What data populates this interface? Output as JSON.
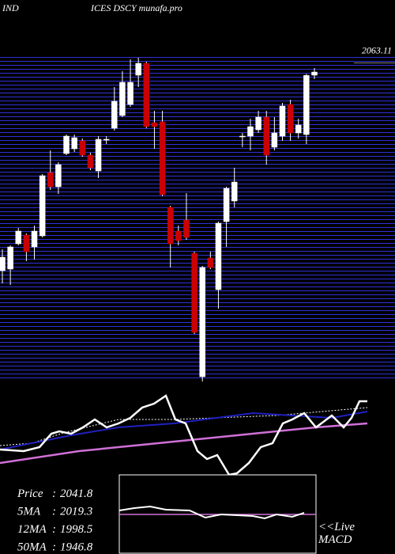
{
  "chart_data": {
    "type": "candlestick",
    "title_left": "IND",
    "title": "ICES DSCY munafa.pro",
    "ylim": [
      1701,
      2070
    ],
    "yticks": [
      2063.11
    ],
    "up_color": "#ffffff",
    "down_color": "#cc0000",
    "open": [
      1827.0,
      1828.8,
      1857.6,
      1867.5,
      1854.0,
      1866.6,
      1938.6,
      1922.4,
      1960.2,
      1965.6,
      1974.6,
      1958.4,
      1940.4,
      1975.5,
      1989.0,
      2003.4,
      2016.0,
      2049.3,
      2062.8,
      1995.3,
      1996.2,
      1899.0,
      1872.0,
      1884.6,
      1846.8,
      1706.4,
      1841.4,
      1805.4,
      1882.8,
      1906.2,
      1979.1,
      1980.0,
      1987.2,
      2001.6,
      1967.4,
      1980.0,
      2016.0,
      1983.6,
      1981.8,
      2049.3
    ],
    "high": [
      1851.3,
      1855.8,
      1875.6,
      1869.3,
      1878.3,
      1936.8,
      1963.8,
      1950.3,
      1981.8,
      1981.8,
      1977.3,
      1961.1,
      1980.0,
      1980.0,
      2035.8,
      2053.8,
      2067.3,
      2069.1,
      2064.6,
      2008.8,
      2008.8,
      1900.8,
      1878.3,
      1915.2,
      1848.6,
      1832.4,
      1848.6,
      1882.8,
      1922.4,
      1944.0,
      1983.6,
      1999.8,
      2008.8,
      2008.8,
      2001.6,
      2017.8,
      2021.4,
      1999.8,
      2050.8,
      2057.4
    ],
    "low": [
      1812.6,
      1810.8,
      1855.8,
      1837.8,
      1839.6,
      1864.8,
      1918.8,
      1914.3,
      1958.4,
      1962.0,
      1956.6,
      1941.3,
      1932.3,
      1971.0,
      1986.3,
      2001.6,
      2013.3,
      2035.8,
      1989.0,
      1965.6,
      1911.6,
      1830.6,
      1855.8,
      1862.1,
      1755.0,
      1701.0,
      1828.8,
      1783.8,
      1854.0,
      1899.0,
      1967.4,
      1963.8,
      1983.6,
      1947.6,
      1963.8,
      1974.6,
      1974.6,
      1977.3,
      1971.0,
      2044.8
    ],
    "close": [
      1842.3,
      1854.0,
      1872.0,
      1848.6,
      1872.0,
      1935.0,
      1922.4,
      1947.6,
      1980.0,
      1978.2,
      1958.4,
      1944.0,
      1976.4,
      1976.4,
      2019.6,
      2041.2,
      2041.2,
      2062.8,
      1990.8,
      1990.8,
      1913.4,
      1857.6,
      1861.2,
      1864.8,
      1756.8,
      1830.6,
      1830.6,
      1881.0,
      1920.6,
      1927.8,
      1980.0,
      1990.8,
      2001.6,
      1958.4,
      1983.6,
      2014.2,
      1983.6,
      1992.6,
      2049.0,
      2052.9
    ],
    "separator": ":",
    "info": [
      {
        "label": "Price",
        "value": 2041.8
      },
      {
        "label": "5MA",
        "value": 2019.3
      },
      {
        "label": "12MA",
        "value": 1998.5
      },
      {
        "label": "50MA",
        "value": 1946.8
      }
    ],
    "macd_note": "<<Live",
    "macd_label": "MACD"
  }
}
